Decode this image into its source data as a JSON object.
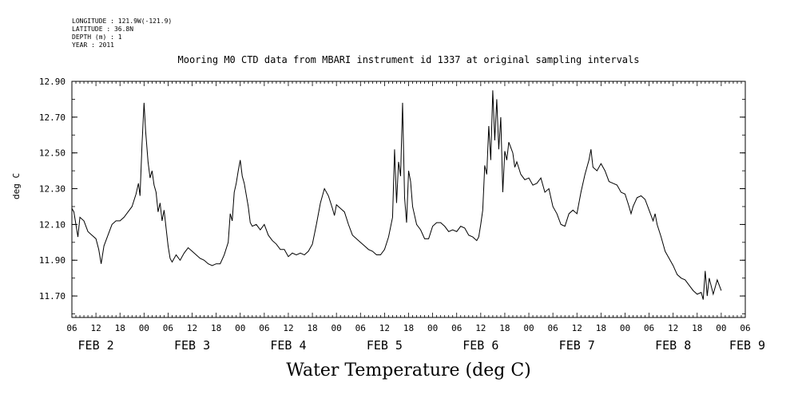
{
  "header": {
    "meta_lines": [
      "LONGITUDE : 121.9W(-121.9)",
      "LATITUDE : 36.8N",
      "DEPTH (m) : 1",
      "YEAR : 2011"
    ]
  },
  "chart_data": {
    "type": "line",
    "title": "Mooring M0 CTD data from MBARI instrument id 1337 at original sampling intervals",
    "xlabel": "Water Temperature (deg C)",
    "ylabel": "deg C",
    "ylim": [
      11.58,
      12.9
    ],
    "y_ticks": [
      "12.90",
      "12.70",
      "12.50",
      "12.30",
      "12.10",
      "11.90",
      "11.70"
    ],
    "x_unit": "hours since Feb 2 00:00 2011",
    "xlim": [
      6,
      174
    ],
    "x_hour_labels": [
      "06",
      "12",
      "18",
      "00",
      "06",
      "12",
      "18",
      "00",
      "06",
      "12",
      "18",
      "00",
      "06",
      "12",
      "18",
      "00",
      "06",
      "12",
      "18",
      "00",
      "06",
      "12",
      "18",
      "00",
      "06",
      "12",
      "18",
      "00",
      "06"
    ],
    "day_labels": [
      "FEB 2",
      "FEB 3",
      "FEB 4",
      "FEB 5",
      "FEB 6",
      "FEB 7",
      "FEB 8",
      "FEB 9"
    ],
    "grid": false,
    "series": [
      {
        "name": "",
        "points": [
          [
            6,
            12.19
          ],
          [
            6.5,
            12.17
          ],
          [
            7,
            12.1
          ],
          [
            7.5,
            12.03
          ],
          [
            8,
            12.14
          ],
          [
            9,
            12.12
          ],
          [
            10,
            12.06
          ],
          [
            11,
            12.04
          ],
          [
            12,
            12.02
          ],
          [
            12.7,
            11.96
          ],
          [
            13.3,
            11.88
          ],
          [
            14,
            11.98
          ],
          [
            15,
            12.04
          ],
          [
            16,
            12.1
          ],
          [
            17,
            12.12
          ],
          [
            18,
            12.12
          ],
          [
            19,
            12.14
          ],
          [
            20,
            12.17
          ],
          [
            21,
            12.2
          ],
          [
            22,
            12.27
          ],
          [
            22.6,
            12.33
          ],
          [
            23,
            12.26
          ],
          [
            23.5,
            12.55
          ],
          [
            24,
            12.78
          ],
          [
            24.4,
            12.62
          ],
          [
            25,
            12.45
          ],
          [
            25.5,
            12.36
          ],
          [
            26,
            12.4
          ],
          [
            26.5,
            12.32
          ],
          [
            27,
            12.28
          ],
          [
            27.5,
            12.17
          ],
          [
            28,
            12.22
          ],
          [
            28.5,
            12.12
          ],
          [
            29,
            12.18
          ],
          [
            30,
            11.98
          ],
          [
            30.5,
            11.91
          ],
          [
            31,
            11.89
          ],
          [
            32,
            11.93
          ],
          [
            33,
            11.9
          ],
          [
            34,
            11.94
          ],
          [
            35,
            11.97
          ],
          [
            36,
            11.95
          ],
          [
            37,
            11.93
          ],
          [
            38,
            11.91
          ],
          [
            39,
            11.9
          ],
          [
            40,
            11.88
          ],
          [
            41,
            11.87
          ],
          [
            42,
            11.88
          ],
          [
            43,
            11.88
          ],
          [
            44,
            11.93
          ],
          [
            45,
            12.0
          ],
          [
            45.5,
            12.16
          ],
          [
            46,
            12.12
          ],
          [
            46.5,
            12.28
          ],
          [
            47,
            12.33
          ],
          [
            47.5,
            12.4
          ],
          [
            48,
            12.46
          ],
          [
            48.5,
            12.37
          ],
          [
            49,
            12.33
          ],
          [
            50,
            12.2
          ],
          [
            50.5,
            12.11
          ],
          [
            51,
            12.09
          ],
          [
            52,
            12.1
          ],
          [
            53,
            12.07
          ],
          [
            54,
            12.1
          ],
          [
            55,
            12.04
          ],
          [
            56,
            12.01
          ],
          [
            57,
            11.99
          ],
          [
            58,
            11.96
          ],
          [
            59,
            11.96
          ],
          [
            60,
            11.92
          ],
          [
            61,
            11.94
          ],
          [
            62,
            11.93
          ],
          [
            63,
            11.94
          ],
          [
            64,
            11.93
          ],
          [
            65,
            11.95
          ],
          [
            66,
            11.99
          ],
          [
            67,
            12.1
          ],
          [
            68,
            12.22
          ],
          [
            69,
            12.3
          ],
          [
            70,
            12.26
          ],
          [
            71,
            12.19
          ],
          [
            71.5,
            12.15
          ],
          [
            72,
            12.21
          ],
          [
            73,
            12.19
          ],
          [
            74,
            12.17
          ],
          [
            75,
            12.1
          ],
          [
            76,
            12.04
          ],
          [
            77,
            12.02
          ],
          [
            78,
            12.0
          ],
          [
            79,
            11.98
          ],
          [
            80,
            11.96
          ],
          [
            81,
            11.95
          ],
          [
            82,
            11.93
          ],
          [
            83,
            11.93
          ],
          [
            84,
            11.96
          ],
          [
            85,
            12.03
          ],
          [
            86,
            12.14
          ],
          [
            86.5,
            12.52
          ],
          [
            87,
            12.22
          ],
          [
            87.5,
            12.45
          ],
          [
            88,
            12.37
          ],
          [
            88.5,
            12.78
          ],
          [
            89,
            12.25
          ],
          [
            89.5,
            12.11
          ],
          [
            90,
            12.4
          ],
          [
            90.5,
            12.34
          ],
          [
            91,
            12.2
          ],
          [
            91.5,
            12.15
          ],
          [
            92,
            12.1
          ],
          [
            93,
            12.07
          ],
          [
            94,
            12.02
          ],
          [
            95,
            12.02
          ],
          [
            96,
            12.09
          ],
          [
            97,
            12.11
          ],
          [
            98,
            12.11
          ],
          [
            99,
            12.09
          ],
          [
            100,
            12.06
          ],
          [
            101,
            12.07
          ],
          [
            102,
            12.06
          ],
          [
            103,
            12.09
          ],
          [
            104,
            12.08
          ],
          [
            105,
            12.04
          ],
          [
            106,
            12.03
          ],
          [
            107,
            12.01
          ],
          [
            107.5,
            12.03
          ],
          [
            108,
            12.1
          ],
          [
            108.5,
            12.18
          ],
          [
            109,
            12.43
          ],
          [
            109.5,
            12.38
          ],
          [
            110,
            12.65
          ],
          [
            110.5,
            12.46
          ],
          [
            111,
            12.85
          ],
          [
            111.5,
            12.57
          ],
          [
            112,
            12.8
          ],
          [
            112.5,
            12.52
          ],
          [
            113,
            12.7
          ],
          [
            113.5,
            12.28
          ],
          [
            114,
            12.51
          ],
          [
            114.5,
            12.46
          ],
          [
            115,
            12.56
          ],
          [
            115.5,
            12.53
          ],
          [
            116,
            12.5
          ],
          [
            116.5,
            12.42
          ],
          [
            117,
            12.45
          ],
          [
            118,
            12.38
          ],
          [
            119,
            12.35
          ],
          [
            120,
            12.36
          ],
          [
            121,
            12.32
          ],
          [
            122,
            12.33
          ],
          [
            123,
            12.36
          ],
          [
            124,
            12.28
          ],
          [
            125,
            12.3
          ],
          [
            126,
            12.2
          ],
          [
            127,
            12.16
          ],
          [
            128,
            12.1
          ],
          [
            129,
            12.09
          ],
          [
            130,
            12.16
          ],
          [
            131,
            12.18
          ],
          [
            132,
            12.16
          ],
          [
            133,
            12.28
          ],
          [
            134,
            12.38
          ],
          [
            135,
            12.46
          ],
          [
            135.5,
            12.52
          ],
          [
            136,
            12.42
          ],
          [
            137,
            12.4
          ],
          [
            138,
            12.44
          ],
          [
            139,
            12.4
          ],
          [
            140,
            12.34
          ],
          [
            141,
            12.33
          ],
          [
            142,
            12.32
          ],
          [
            143,
            12.28
          ],
          [
            144,
            12.27
          ],
          [
            145,
            12.2
          ],
          [
            145.5,
            12.16
          ],
          [
            146,
            12.2
          ],
          [
            147,
            12.25
          ],
          [
            148,
            12.26
          ],
          [
            149,
            12.24
          ],
          [
            150,
            12.18
          ],
          [
            151,
            12.12
          ],
          [
            151.5,
            12.16
          ],
          [
            152,
            12.1
          ],
          [
            153,
            12.03
          ],
          [
            154,
            11.95
          ],
          [
            155,
            11.91
          ],
          [
            156,
            11.87
          ],
          [
            157,
            11.82
          ],
          [
            158,
            11.8
          ],
          [
            159,
            11.79
          ],
          [
            160,
            11.76
          ],
          [
            161,
            11.73
          ],
          [
            162,
            11.71
          ],
          [
            163,
            11.72
          ],
          [
            163.5,
            11.68
          ],
          [
            164,
            11.84
          ],
          [
            164.5,
            11.7
          ],
          [
            165,
            11.8
          ],
          [
            166,
            11.71
          ],
          [
            167,
            11.79
          ],
          [
            168,
            11.73
          ]
        ]
      }
    ]
  }
}
